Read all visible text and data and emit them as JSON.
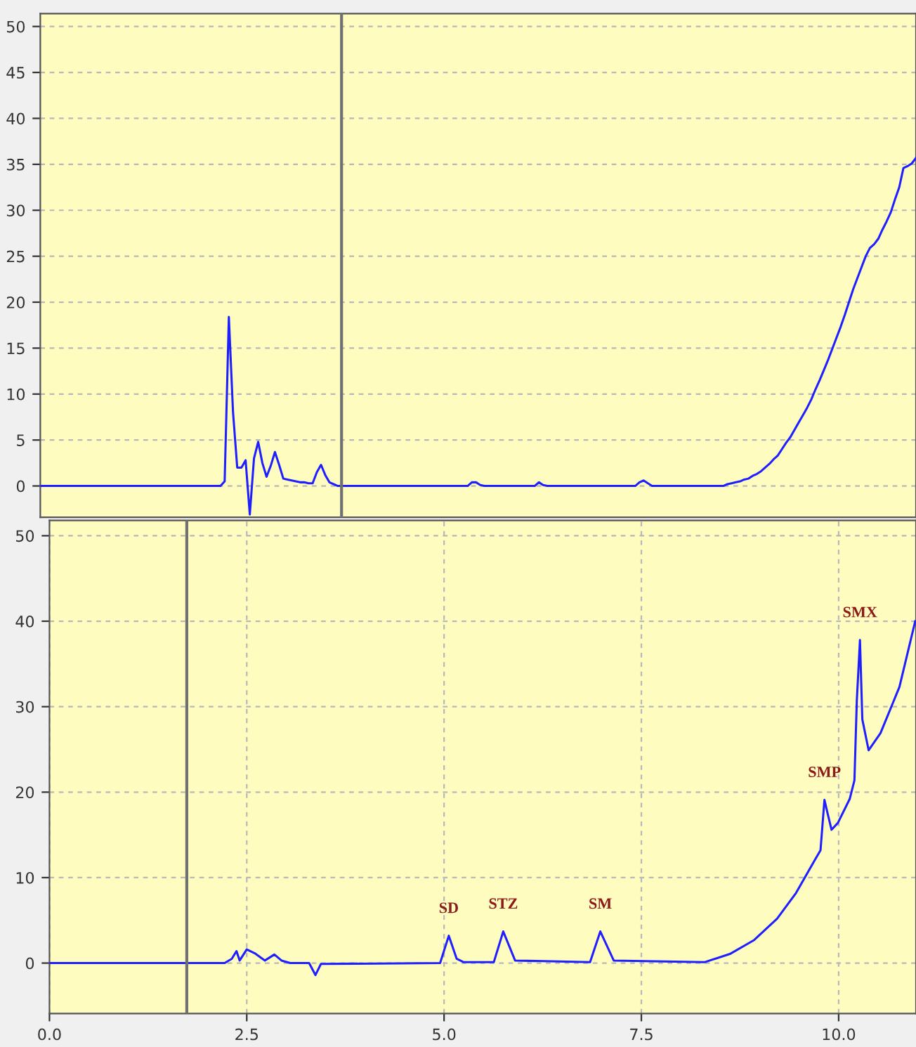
{
  "chart_data": [
    {
      "type": "line",
      "tick_labels": "y",
      "ylim": [
        -3.4,
        51.4
      ],
      "categories": [
        null,
        null,
        null,
        null,
        null,
        null,
        null,
        null,
        null,
        null,
        null,
        null,
        null,
        null,
        null,
        null,
        null,
        null,
        null,
        null,
        null,
        null,
        null,
        null,
        null,
        null,
        null,
        null,
        null,
        null,
        null,
        null,
        null,
        null,
        null,
        null,
        null,
        null,
        null,
        null,
        null,
        null,
        null,
        null,
        null,
        null,
        null,
        null,
        null,
        null,
        null,
        null,
        null,
        null,
        null,
        null,
        null,
        null,
        null,
        null,
        null,
        null,
        null,
        null,
        null,
        null,
        null,
        null,
        null,
        null,
        null,
        null,
        null,
        null,
        null,
        null,
        null,
        null,
        null,
        null,
        null,
        null,
        null,
        null,
        null,
        null,
        null,
        null,
        null,
        null,
        null,
        null,
        null,
        null,
        null,
        null,
        null,
        null,
        null,
        null,
        null,
        null,
        null,
        null,
        null,
        null,
        null,
        null,
        null,
        null,
        null,
        null,
        null,
        null,
        null,
        null,
        null,
        null,
        null,
        null,
        null,
        null,
        null,
        null,
        null,
        null,
        null,
        null,
        null,
        null,
        null,
        null,
        null,
        null,
        null,
        null,
        null,
        null,
        null,
        null,
        null,
        null,
        null,
        null,
        null,
        null,
        null,
        null,
        null,
        null,
        null,
        null,
        null,
        null,
        null,
        null,
        null,
        null,
        null,
        null,
        null,
        null,
        null,
        null,
        null,
        null,
        null,
        null,
        null,
        null,
        null,
        null,
        null,
        null,
        null,
        null,
        null,
        null,
        null,
        null,
        null,
        null,
        null,
        null,
        null,
        null,
        null,
        null,
        null,
        null,
        null,
        null,
        null,
        null,
        null,
        null,
        null,
        null,
        null,
        null,
        null,
        null,
        null,
        null,
        null,
        null,
        null,
        null,
        null,
        null
      ],
      "yticks": [
        0,
        5,
        10,
        15,
        20,
        25,
        30,
        35,
        40,
        45,
        50
      ],
      "grid": "y",
      "marker": "none",
      "line_style": "solid",
      "series": [
        {
          "color": "#2020ff",
          "values": [
            0,
            0,
            0,
            0,
            0,
            0,
            0,
            0,
            0,
            0,
            0,
            0,
            0,
            0,
            0,
            0,
            0,
            0,
            0,
            0,
            0,
            0,
            0,
            0,
            0,
            0,
            0,
            0,
            0,
            0,
            0,
            0,
            0,
            0,
            0,
            0,
            0,
            0,
            0,
            0,
            0,
            0,
            0,
            0,
            0.5,
            18.4,
            8,
            2,
            2,
            2.8,
            -3.1,
            3,
            4.8,
            2.5,
            1,
            2.2,
            3.7,
            2.3,
            0.8,
            0.7,
            0.6,
            0.5,
            0.4,
            0.4,
            0.3,
            0.3,
            1.5,
            2.3,
            1.2,
            0.4,
            0.2,
            0,
            0,
            0,
            0,
            0,
            0,
            0,
            0,
            0,
            0,
            0,
            0,
            0,
            0,
            0,
            0,
            0,
            0,
            0,
            0,
            0,
            0,
            0,
            0,
            0,
            0,
            0,
            0,
            0,
            0,
            0,
            0,
            0.4,
            0.4,
            0.1,
            0,
            0,
            0,
            0,
            0,
            0,
            0,
            0,
            0,
            0,
            0,
            0,
            0,
            0.4,
            0.1,
            0,
            0,
            0,
            0,
            0,
            0,
            0,
            0,
            0,
            0,
            0,
            0,
            0,
            0,
            0,
            0,
            0,
            0,
            0,
            0,
            0,
            0,
            0.4,
            0.6,
            0.3,
            0,
            0,
            0,
            0,
            0,
            0,
            0,
            0,
            0,
            0,
            0,
            0,
            0,
            0,
            0,
            0,
            0,
            0,
            0.2,
            0.3,
            0.4,
            0.5,
            0.7,
            0.8,
            1.1,
            1.3,
            1.6,
            2,
            2.4,
            2.9,
            3.3,
            4,
            4.7,
            5.3,
            6.1,
            6.9,
            7.7,
            8.5,
            9.4,
            10.5,
            11.5,
            12.6,
            13.7,
            14.9,
            16.1,
            17.3,
            18.6,
            20,
            21.4,
            22.6,
            23.8,
            25,
            25.9,
            26.3,
            26.9,
            27.9,
            28.8,
            29.8,
            31.2,
            32.5,
            34.6,
            34.8,
            35.1,
            35.7
          ]
        }
      ]
    },
    {
      "type": "line",
      "xlim": [
        0,
        10.98
      ],
      "ylim": [
        -5.9,
        51.8
      ],
      "xticks": [
        {
          "value": 0,
          "label": "0.0"
        },
        {
          "value": 2.5,
          "label": "2.5"
        },
        {
          "value": 5,
          "label": "5.0"
        },
        {
          "value": 7.5,
          "label": "7.5"
        },
        {
          "value": 10,
          "label": "10.0"
        }
      ],
      "yticks": [
        0,
        10,
        20,
        30,
        40,
        50
      ],
      "grid": true,
      "marker": "none",
      "line_style": "solid",
      "ref_lines": [
        {
          "axis": "x",
          "value": 1.74,
          "color": "#707070"
        }
      ],
      "annotations": [
        {
          "text": "SD",
          "x": 5.06,
          "y": 3.2
        },
        {
          "text": "STZ",
          "x": 5.75,
          "y": 3.7
        },
        {
          "text": "SM",
          "x": 6.98,
          "y": 3.7
        },
        {
          "text": "SMP",
          "x": 9.82,
          "y": 19.1
        },
        {
          "text": "SMX",
          "x": 10.27,
          "y": 37.8
        }
      ],
      "series": [
        {
          "color": "#2020ff",
          "x": [
            0,
            2.22,
            2.31,
            2.37,
            2.41,
            2.5,
            2.61,
            2.73,
            2.85,
            2.94,
            3.05,
            3.29,
            3.37,
            3.44,
            4.95,
            5.06,
            5.16,
            5.25,
            5.63,
            5.75,
            5.9,
            6.85,
            6.98,
            7.15,
            8.3,
            8.63,
            8.93,
            9.22,
            9.46,
            9.7,
            9.77,
            9.82,
            9.86,
            9.91,
            9.99,
            10.14,
            10.2,
            10.23,
            10.27,
            10.3,
            10.38,
            10.53,
            10.77,
            10.97
          ],
          "values": [
            0,
            0,
            0.5,
            1.4,
            0.3,
            1.6,
            1.1,
            0.3,
            1,
            0.3,
            0,
            0,
            -1.4,
            -0.1,
            0,
            3.2,
            0.5,
            0.1,
            0.1,
            3.7,
            0.3,
            0.1,
            3.7,
            0.3,
            0.1,
            1.1,
            2.7,
            5.2,
            8.2,
            12.1,
            13.2,
            19.1,
            17.5,
            15.6,
            16.4,
            19.2,
            21.4,
            30.7,
            37.8,
            28.5,
            24.9,
            26.9,
            32.3,
            40
          ]
        }
      ]
    }
  ]
}
